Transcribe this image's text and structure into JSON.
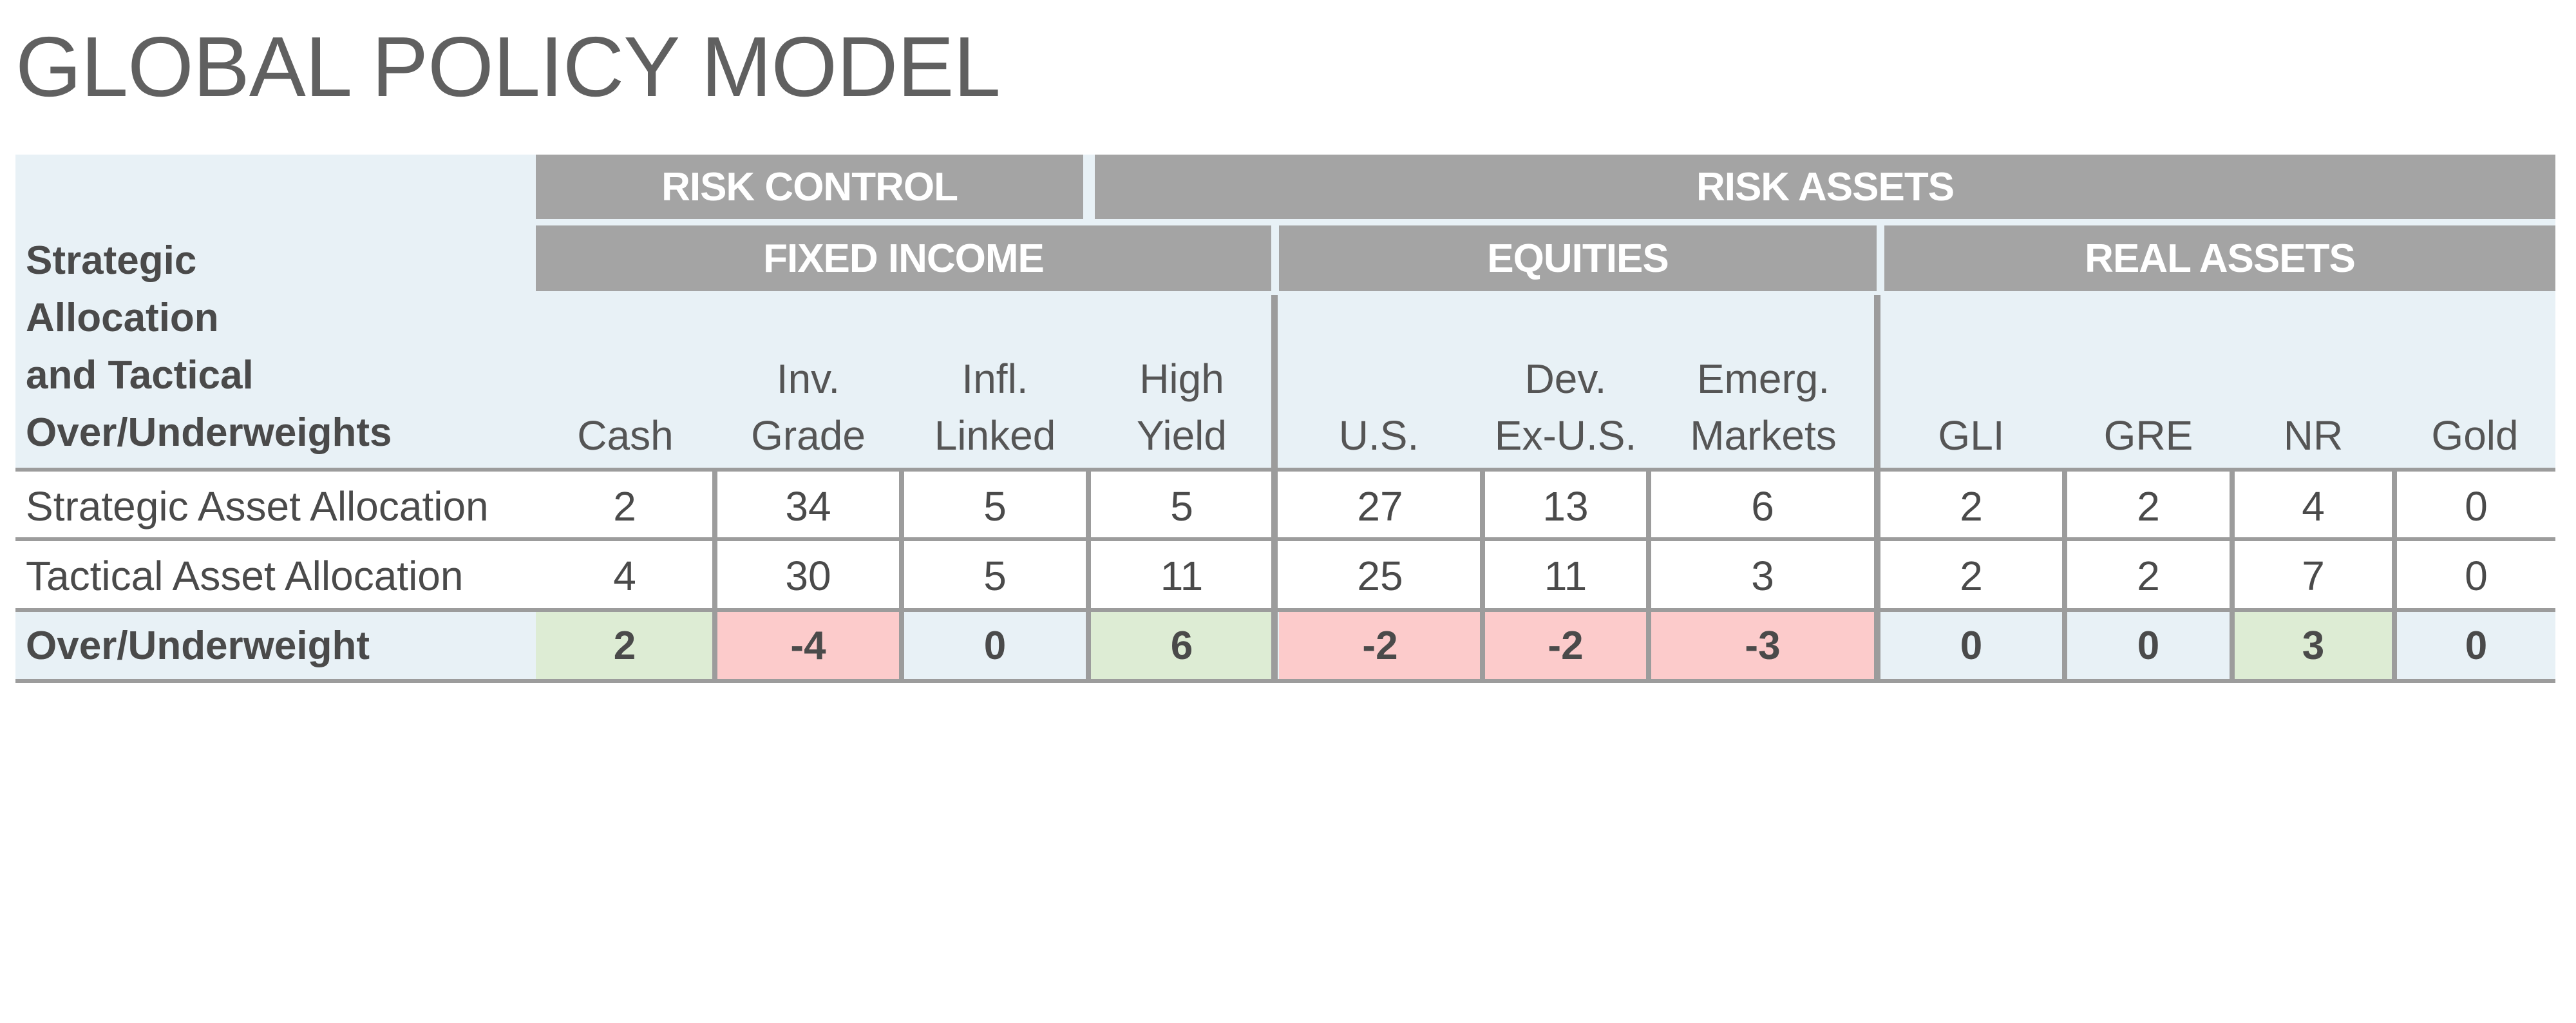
{
  "title": "GLOBAL POLICY MODEL",
  "stub_header": [
    "Strategic",
    "Allocation",
    "and Tactical",
    "Over/Underweights"
  ],
  "top_groups": [
    {
      "label": "RISK CONTROL"
    },
    {
      "label": "RISK ASSETS"
    }
  ],
  "sub_groups": [
    {
      "label": "FIXED INCOME"
    },
    {
      "label": "EQUITIES"
    },
    {
      "label": "REAL ASSETS"
    }
  ],
  "columns": [
    {
      "lines": [
        "Cash"
      ]
    },
    {
      "lines": [
        "Inv.",
        "Grade"
      ]
    },
    {
      "lines": [
        "Infl.",
        "Linked"
      ]
    },
    {
      "lines": [
        "High",
        "Yield"
      ]
    },
    {
      "lines": [
        "U.S."
      ]
    },
    {
      "lines": [
        "Dev.",
        "Ex-U.S."
      ]
    },
    {
      "lines": [
        "Emerg.",
        "Markets"
      ]
    },
    {
      "lines": [
        "GLI"
      ]
    },
    {
      "lines": [
        "GRE"
      ]
    },
    {
      "lines": [
        "NR"
      ]
    },
    {
      "lines": [
        "Gold"
      ]
    }
  ],
  "rows": [
    {
      "label": "Strategic Asset Allocation",
      "values": [
        "2",
        "34",
        "5",
        "5",
        "27",
        "13",
        "6",
        "2",
        "2",
        "4",
        "0"
      ]
    },
    {
      "label": "Tactical Asset Allocation",
      "values": [
        "4",
        "30",
        "5",
        "11",
        "25",
        "11",
        "3",
        "2",
        "2",
        "7",
        "0"
      ]
    },
    {
      "label": "Over/Underweight",
      "values": [
        "2",
        "-4",
        "0",
        "6",
        "-2",
        "-2",
        "-3",
        "0",
        "0",
        "3",
        "0"
      ]
    }
  ],
  "colors": {
    "positive": "#ddecd4",
    "negative": "#fccbcb",
    "neutral": "#e8f1f6",
    "header_bar": "#a4a4a4"
  }
}
